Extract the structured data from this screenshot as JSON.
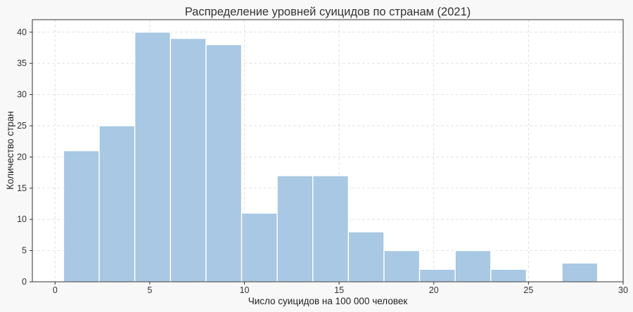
{
  "chart_data": {
    "type": "bar",
    "subtype": "histogram",
    "title": "Распределение уровней суицидов по странам (2021)",
    "xlabel": "Число суицидов на 100 000 человек",
    "ylabel": "Количество стран",
    "xlim": [
      -1.2,
      30
    ],
    "ylim": [
      0,
      42
    ],
    "xticks": [
      0,
      5,
      10,
      15,
      20,
      25,
      30
    ],
    "yticks": [
      0,
      5,
      10,
      15,
      20,
      25,
      30,
      35,
      40
    ],
    "grid": true,
    "bin_width": 1.88,
    "bin_start": 0.45,
    "counts": [
      21,
      25,
      40,
      39,
      38,
      11,
      17,
      17,
      8,
      5,
      2,
      5,
      2,
      0,
      3
    ],
    "bar_color": "#a8c8e4"
  }
}
